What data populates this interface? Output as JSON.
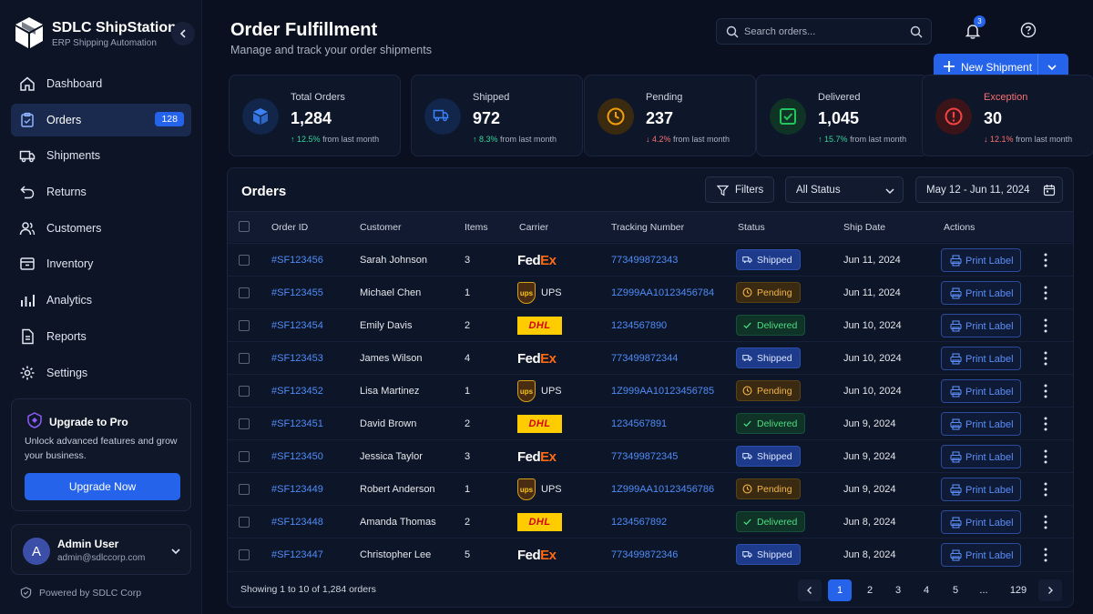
{
  "brand": {
    "name": "SDLC ShipStation",
    "subtitle": "ERP Shipping Automation"
  },
  "nav": [
    {
      "label": "Dashboard",
      "icon": "home-icon"
    },
    {
      "label": "Orders",
      "icon": "clipboard-icon",
      "badge": "128",
      "active": true
    },
    {
      "label": "Shipments",
      "icon": "truck-icon"
    },
    {
      "label": "Returns",
      "icon": "return-icon"
    },
    {
      "label": "Customers",
      "icon": "users-icon"
    },
    {
      "label": "Inventory",
      "icon": "inventory-icon"
    },
    {
      "label": "Analytics",
      "icon": "bar-chart-icon"
    },
    {
      "label": "Reports",
      "icon": "document-icon"
    },
    {
      "label": "Settings",
      "icon": "gear-icon"
    }
  ],
  "upgrade": {
    "title": "Upgrade to Pro",
    "text": "Unlock advanced features and grow your business.",
    "button": "Upgrade Now"
  },
  "user": {
    "initial": "A",
    "name": "Admin User",
    "email": "admin@sdlccorp.com"
  },
  "powered_by": "Powered by SDLC Corp",
  "header": {
    "title": "Order Fulfillment",
    "subtitle": "Manage and track your order shipments"
  },
  "search": {
    "placeholder": "Search orders..."
  },
  "notifications": {
    "count": "3"
  },
  "new_shipment": {
    "label": "New Shipment"
  },
  "stats": [
    {
      "label": "Total Orders",
      "value": "1,284",
      "delta": "12.5%",
      "dir": "up",
      "suffix": "from last month",
      "color": "#3b82f6",
      "bg": "#12254a",
      "icon": "box-icon"
    },
    {
      "label": "Shipped",
      "value": "972",
      "delta": "8.3%",
      "dir": "up",
      "suffix": "from last month",
      "color": "#3b82f6",
      "bg": "#12254a",
      "icon": "truck-icon"
    },
    {
      "label": "Pending",
      "value": "237",
      "delta": "4.2%",
      "dir": "down",
      "suffix": "from last month",
      "color": "#f59e0b",
      "bg": "#3a2a10",
      "icon": "clock-icon"
    },
    {
      "label": "Delivered",
      "value": "1,045",
      "delta": "15.7%",
      "dir": "up",
      "suffix": "from last month",
      "color": "#22c55e",
      "bg": "#0f3324",
      "icon": "check-square-icon"
    },
    {
      "label": "Exception",
      "value": "30",
      "delta": "12.1%",
      "dir": "down",
      "suffix": "from last month",
      "color": "#ef4444",
      "bg": "#3a1418",
      "icon": "alert-icon",
      "label_color": "#f87171"
    }
  ],
  "orders": {
    "title": "Orders",
    "filters_label": "Filters",
    "status_filter": "All Status",
    "date_range": "May 12 - Jun 11, 2024",
    "columns": [
      "Order ID",
      "Customer",
      "Items",
      "Carrier",
      "Tracking Number",
      "Status",
      "Ship Date",
      "Actions"
    ],
    "action_label": "Print Label",
    "rows": [
      {
        "id": "#SF123456",
        "customer": "Sarah Johnson",
        "items": "3",
        "carrier": "FedEx",
        "tracking": "773499872343",
        "status": "Shipped",
        "date": "Jun 11, 2024"
      },
      {
        "id": "#SF123455",
        "customer": "Michael Chen",
        "items": "1",
        "carrier": "UPS",
        "tracking": "1Z999AA10123456784",
        "status": "Pending",
        "date": "Jun 11, 2024"
      },
      {
        "id": "#SF123454",
        "customer": "Emily Davis",
        "items": "2",
        "carrier": "DHL",
        "tracking": "1234567890",
        "status": "Delivered",
        "date": "Jun 10, 2024"
      },
      {
        "id": "#SF123453",
        "customer": "James Wilson",
        "items": "4",
        "carrier": "FedEx",
        "tracking": "773499872344",
        "status": "Shipped",
        "date": "Jun 10, 2024"
      },
      {
        "id": "#SF123452",
        "customer": "Lisa Martinez",
        "items": "1",
        "carrier": "UPS",
        "tracking": "1Z999AA10123456785",
        "status": "Pending",
        "date": "Jun 10, 2024"
      },
      {
        "id": "#SF123451",
        "customer": "David Brown",
        "items": "2",
        "carrier": "DHL",
        "tracking": "1234567891",
        "status": "Delivered",
        "date": "Jun 9, 2024"
      },
      {
        "id": "#SF123450",
        "customer": "Jessica Taylor",
        "items": "3",
        "carrier": "FedEx",
        "tracking": "773499872345",
        "status": "Shipped",
        "date": "Jun 9, 2024"
      },
      {
        "id": "#SF123449",
        "customer": "Robert Anderson",
        "items": "1",
        "carrier": "UPS",
        "tracking": "1Z999AA10123456786",
        "status": "Pending",
        "date": "Jun 9, 2024"
      },
      {
        "id": "#SF123448",
        "customer": "Amanda Thomas",
        "items": "2",
        "carrier": "DHL",
        "tracking": "1234567892",
        "status": "Delivered",
        "date": "Jun 8, 2024"
      },
      {
        "id": "#SF123447",
        "customer": "Christopher Lee",
        "items": "5",
        "carrier": "FedEx",
        "tracking": "773499872346",
        "status": "Shipped",
        "date": "Jun 8, 2024"
      }
    ],
    "showing": "Showing 1 to 10 of 1,284 orders",
    "pages": [
      "1",
      "2",
      "3",
      "4",
      "5",
      "...",
      "129"
    ],
    "current_page": "1"
  }
}
